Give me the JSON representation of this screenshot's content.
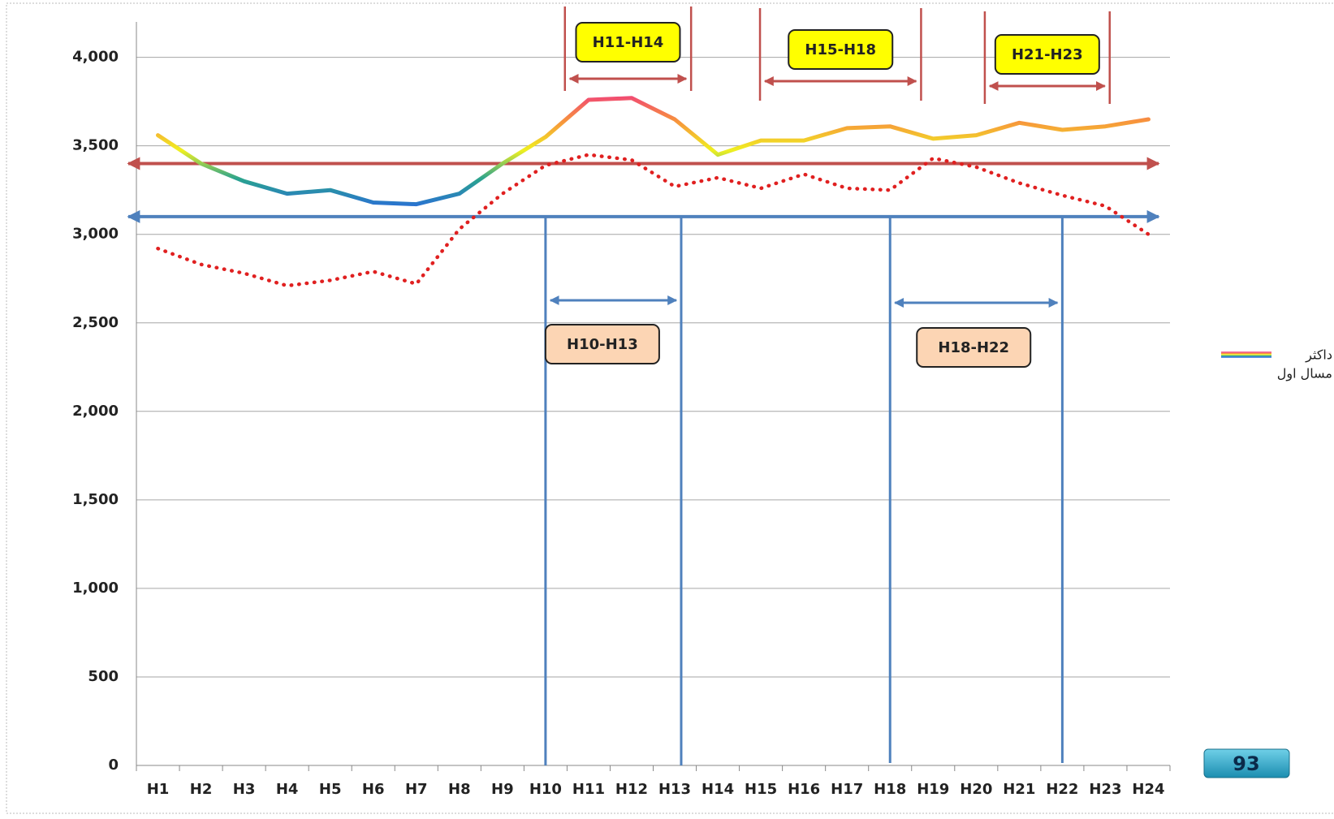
{
  "chart_data": {
    "type": "line",
    "categories": [
      "H1",
      "H2",
      "H3",
      "H4",
      "H5",
      "H6",
      "H7",
      "H8",
      "H9",
      "H10",
      "H11",
      "H12",
      "H13",
      "H14",
      "H15",
      "H16",
      "H17",
      "H18",
      "H19",
      "H20",
      "H21",
      "H22",
      "H23",
      "H24"
    ],
    "series": [
      {
        "name": "داکثر",
        "colors": [
          "#f0407a",
          "#f7943c",
          "#f0f020",
          "#2aa38f",
          "#2a6fd6"
        ],
        "values": [
          3560,
          3400,
          3300,
          3230,
          3250,
          3180,
          3170,
          3230,
          3400,
          3550,
          3760,
          3770,
          3650,
          3450,
          3530,
          3530,
          3600,
          3610,
          3540,
          3560,
          3630,
          3590,
          3610,
          3650
        ]
      },
      {
        "name": "مسال اول",
        "color": "#e02020",
        "line_style": "dotted",
        "values": [
          2920,
          2830,
          2780,
          2710,
          2740,
          2790,
          2720,
          3030,
          3230,
          3390,
          3450,
          3420,
          3270,
          3320,
          3260,
          3340,
          3260,
          3250,
          3430,
          3380,
          3290,
          3220,
          3160,
          3000
        ]
      }
    ],
    "reference_lines": [
      {
        "value": 3400,
        "color": "#c0504d"
      },
      {
        "value": 3100,
        "color": "#4f81bd"
      }
    ],
    "annotations": [
      {
        "label": "H11-H14",
        "color": "#c0504d",
        "fill": "#ffff00"
      },
      {
        "label": "H15-H18",
        "color": "#c0504d",
        "fill": "#ffff00"
      },
      {
        "label": "H21-H23",
        "color": "#c0504d",
        "fill": "#ffff00"
      },
      {
        "label": "H10-H13",
        "color": "#4f81bd",
        "fill": "#fcd5b4"
      },
      {
        "label": "H18-H22",
        "color": "#4f81bd",
        "fill": "#fcd5b4"
      }
    ],
    "ylim": [
      0,
      4200
    ],
    "yticks": [
      0,
      500,
      {
        "value": 1000,
        "label": "1,000"
      },
      {
        "value": 1500,
        "label": "1,500"
      },
      {
        "value": 2000,
        "label": "2,000"
      },
      {
        "value": 2500,
        "label": "2,500"
      },
      {
        "value": 3000,
        "label": "3,000"
      },
      {
        "value": 3500,
        "label": "3,500"
      },
      {
        "value": 4000,
        "label": "4,000"
      }
    ],
    "grid": true
  },
  "badge": "93"
}
